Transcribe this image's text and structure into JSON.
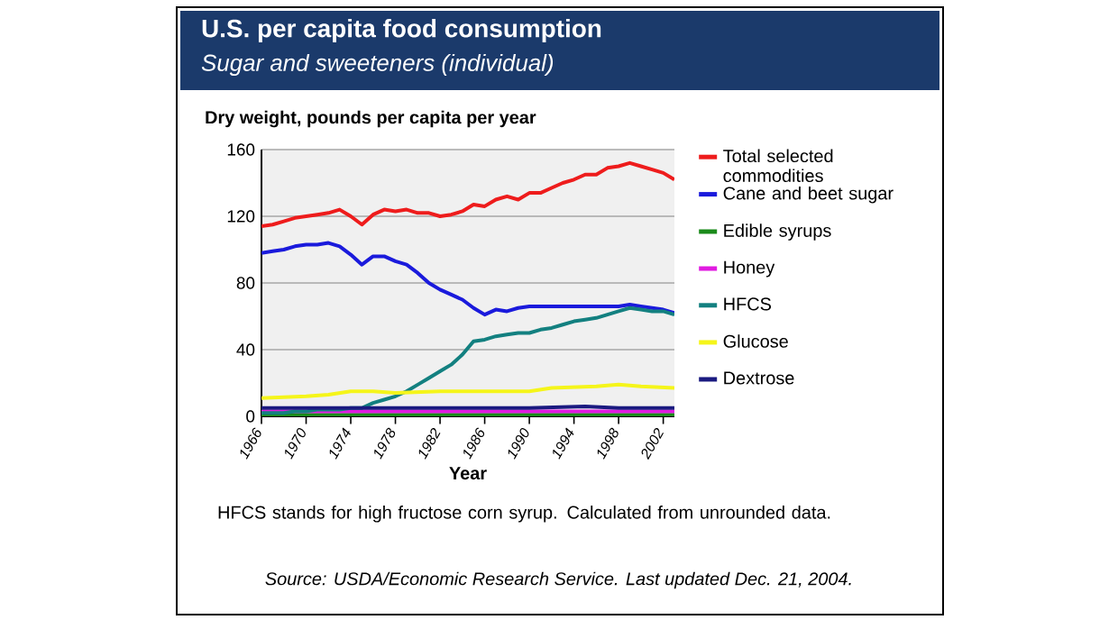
{
  "chart_data": {
    "type": "line",
    "title": "U.S. per capita food consumption",
    "subtitle": "Sugar and sweeteners (individual)",
    "xlabel": "Year",
    "ylabel": "Dry weight, pounds per capita per year",
    "xlim": [
      1966,
      2003
    ],
    "xticks": [
      1966,
      1970,
      1974,
      1978,
      1982,
      1986,
      1990,
      1994,
      1998,
      2002
    ],
    "ylim": [
      0,
      160
    ],
    "yticks": [
      0,
      40,
      80,
      120,
      160
    ],
    "grid": "y",
    "legend": "right",
    "marker": "none",
    "line_style": "solid",
    "x": [
      1966,
      1967,
      1968,
      1969,
      1970,
      1971,
      1972,
      1973,
      1974,
      1975,
      1976,
      1977,
      1978,
      1979,
      1980,
      1981,
      1982,
      1983,
      1984,
      1985,
      1986,
      1987,
      1988,
      1989,
      1990,
      1991,
      1992,
      1993,
      1994,
      1995,
      1996,
      1997,
      1998,
      1999,
      2000,
      2001,
      2002,
      2003
    ],
    "series": [
      {
        "name": "Total selected commodities",
        "color": "#ee1c1c",
        "values": [
          114,
          115,
          117,
          119,
          120,
          121,
          122,
          124,
          120,
          115,
          121,
          124,
          123,
          124,
          122,
          122,
          120,
          121,
          123,
          127,
          126,
          130,
          132,
          130,
          134,
          134,
          137,
          140,
          142,
          145,
          145,
          149,
          150,
          152,
          150,
          148,
          146,
          142
        ]
      },
      {
        "name": "Cane and beet sugar",
        "color": "#1a1adc",
        "values": [
          98,
          99,
          100,
          102,
          103,
          103,
          104,
          102,
          97,
          91,
          96,
          96,
          93,
          91,
          86,
          80,
          76,
          73,
          70,
          65,
          61,
          64,
          63,
          65,
          66,
          66,
          66,
          66,
          66,
          66,
          66,
          66,
          66,
          67,
          66,
          65,
          64,
          62
        ]
      },
      {
        "name": "Edible syrups",
        "color": "#1a8a1a",
        "x": [
          1966,
          1974,
          1982,
          1990,
          1998,
          2003
        ],
        "values": [
          1,
          1,
          1,
          1,
          1,
          1
        ]
      },
      {
        "name": "Honey",
        "color": "#e01ae0",
        "x": [
          1966,
          1974,
          1982,
          1990,
          1998,
          2003
        ],
        "values": [
          3,
          3,
          3,
          3,
          3,
          3
        ]
      },
      {
        "name": "HFCS",
        "color": "#138080",
        "values": [
          2,
          2,
          2,
          3,
          3,
          4,
          4,
          4,
          5,
          5,
          8,
          10,
          12,
          15,
          19,
          23,
          27,
          31,
          37,
          45,
          46,
          48,
          49,
          50,
          50,
          52,
          53,
          55,
          57,
          58,
          59,
          61,
          63,
          65,
          64,
          63,
          63,
          61
        ]
      },
      {
        "name": "Glucose",
        "color": "#f5f51a",
        "x": [
          1966,
          1970,
          1972,
          1974,
          1976,
          1978,
          1982,
          1986,
          1990,
          1992,
          1996,
          1998,
          2000,
          2003
        ],
        "values": [
          11,
          12,
          13,
          15,
          15,
          14,
          15,
          15,
          15,
          17,
          18,
          19,
          18,
          17
        ]
      },
      {
        "name": "Dextrose",
        "color": "#1a1a80",
        "x": [
          1966,
          1974,
          1982,
          1990,
          1995,
          1998,
          2003
        ],
        "values": [
          5,
          5,
          5,
          5,
          6,
          5,
          5
        ]
      }
    ],
    "annotations": [
      "HFCS stands for high fructose corn syrup. Calculated from unrounded data.",
      "Source: USDA/Economic Research Service. Last updated Dec. 21, 2004."
    ]
  }
}
